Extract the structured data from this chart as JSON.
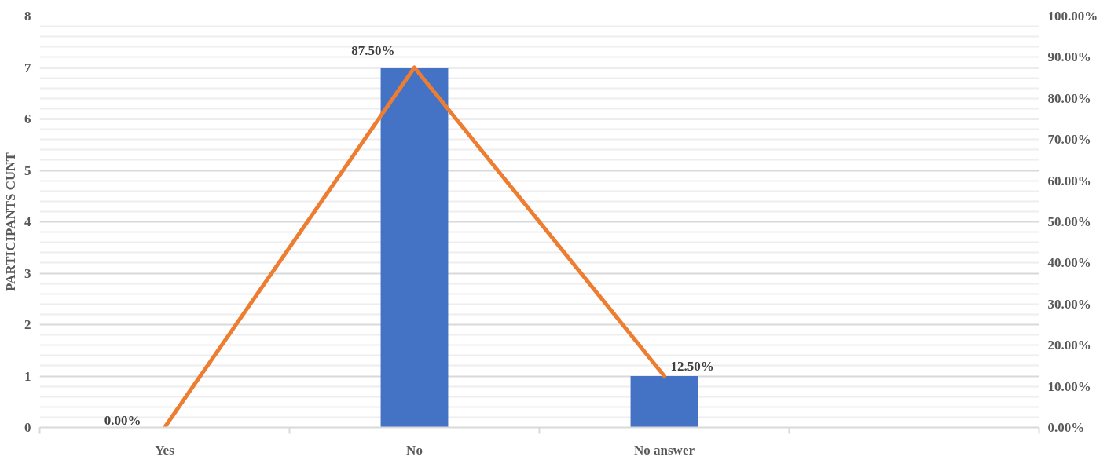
{
  "chart_data": {
    "type": "bar",
    "ylabel": "PARTICIPANTS CUNT",
    "categories": [
      "Yes",
      "No",
      "No answer",
      null
    ],
    "series": [
      {
        "color": "#4472c4",
        "values": [
          0,
          7,
          1,
          null
        ]
      },
      {
        "type": "line",
        "axis": "y2",
        "color": "#ed7d31",
        "values": [
          0,
          87.5,
          12.5,
          null
        ],
        "value_labels": [
          "0.00%",
          "87.50%",
          "12.50%",
          null
        ]
      }
    ],
    "ylim": [
      0,
      8
    ],
    "yticks": [
      0,
      1,
      2,
      3,
      4,
      5,
      6,
      7,
      8
    ],
    "y2lim": [
      0,
      100
    ],
    "y2ticks": [
      {
        "value": 0,
        "label": "0.00%"
      },
      {
        "value": 10,
        "label": "10.00%"
      },
      {
        "value": 20,
        "label": "20.00%"
      },
      {
        "value": 30,
        "label": "30.00%"
      },
      {
        "value": 40,
        "label": "40.00%"
      },
      {
        "value": 50,
        "label": "50.00%"
      },
      {
        "value": 60,
        "label": "60.00%"
      },
      {
        "value": 70,
        "label": "70.00%"
      },
      {
        "value": 80,
        "label": "80.00%"
      },
      {
        "value": 90,
        "label": "90.00%"
      },
      {
        "value": 100,
        "label": "100.00%"
      }
    ],
    "grid": "y"
  }
}
